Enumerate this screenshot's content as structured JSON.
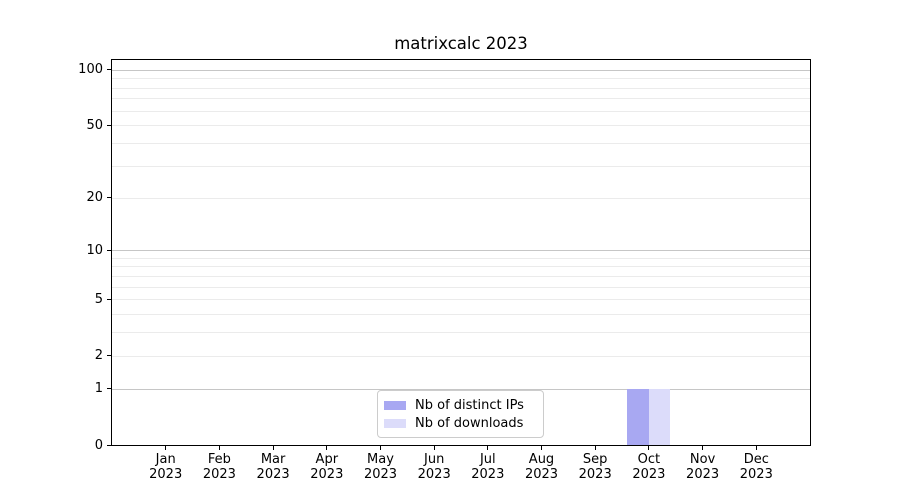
{
  "chart_data": {
    "type": "bar",
    "title": "matrixcalc 2023",
    "categories": [
      "Jan",
      "Feb",
      "Mar",
      "Apr",
      "May",
      "Jun",
      "Jul",
      "Aug",
      "Sep",
      "Oct",
      "Nov",
      "Dec"
    ],
    "year": "2023",
    "series": [
      {
        "name": "Nb of distinct IPs",
        "color": "#a8a8f2",
        "values": [
          0,
          0,
          0,
          0,
          0,
          0,
          0,
          0,
          0,
          1,
          0,
          0
        ]
      },
      {
        "name": "Nb of downloads",
        "color": "#dcdcfa",
        "values": [
          0,
          0,
          0,
          0,
          0,
          0,
          0,
          0,
          0,
          1,
          0,
          0
        ]
      }
    ],
    "xlabel": "",
    "ylabel": "",
    "y_scale": "log1p",
    "ylim": [
      0,
      113
    ],
    "y_ticks": [
      0,
      1,
      2,
      5,
      10,
      20,
      50,
      100
    ],
    "y_major_gridlines": [
      1,
      10,
      100
    ],
    "y_minor_gridlines": [
      2,
      3,
      4,
      5,
      6,
      7,
      8,
      9,
      20,
      30,
      40,
      50,
      60,
      70,
      80,
      90
    ],
    "grid": "on",
    "legend_position": "lower center",
    "colors": {
      "grid_major": "#c6c6c6",
      "grid_minor": "#ebebeb",
      "spine": "#000000",
      "background": "#ffffff",
      "text": "#000000"
    }
  }
}
